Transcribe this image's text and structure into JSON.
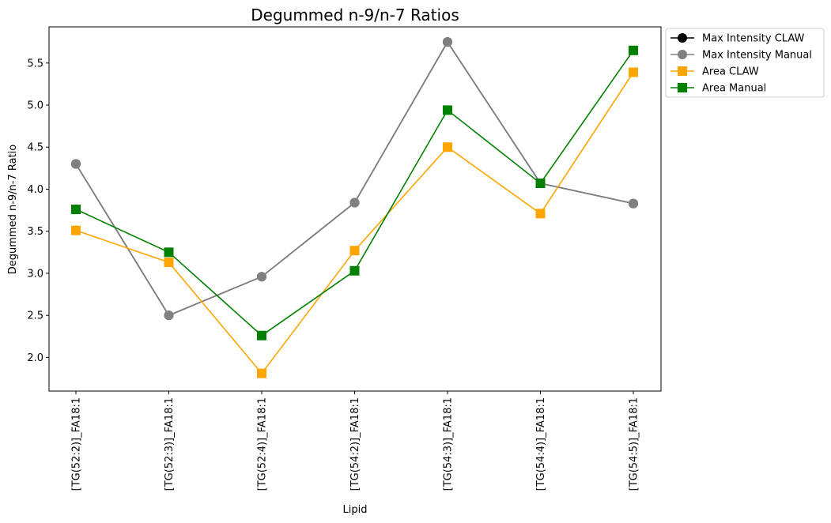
{
  "chart_data": {
    "type": "line",
    "title": "Degummed n-9/n-7 Ratios",
    "xlabel": "Lipid",
    "ylabel": "Degummed n-9/n-7 Ratio",
    "categories": [
      "[TG(52:2)]_FA18:1",
      "[TG(52:3)]_FA18:1",
      "[TG(52:4)]_FA18:1",
      "[TG(54:2)]_FA18:1",
      "[TG(54:3)]_FA18:1",
      "[TG(54:4)]_FA18:1",
      "[TG(54:5)]_FA18:1"
    ],
    "ylim": [
      1.6,
      5.93
    ],
    "yticks": [
      "2.0",
      "2.5",
      "3.0",
      "3.5",
      "4.0",
      "4.5",
      "5.0",
      "5.5"
    ],
    "grid": false,
    "legend_position": "outside-top-right",
    "series": [
      {
        "name": "Max Intensity CLAW",
        "color": "#000000",
        "marker": "circle",
        "values": [
          4.3,
          2.5,
          2.96,
          3.84,
          5.75,
          4.07,
          3.83
        ]
      },
      {
        "name": "Max Intensity Manual",
        "color": "#808080",
        "marker": "circle",
        "values": [
          4.3,
          2.5,
          2.96,
          3.84,
          5.75,
          4.07,
          3.83
        ]
      },
      {
        "name": "Area CLAW",
        "color": "#FFA500",
        "marker": "square",
        "values": [
          3.51,
          3.13,
          1.81,
          3.27,
          4.5,
          3.71,
          5.39
        ]
      },
      {
        "name": "Area Manual",
        "color": "#008000",
        "marker": "square",
        "values": [
          3.76,
          3.25,
          2.26,
          3.03,
          4.94,
          4.07,
          5.65
        ]
      }
    ]
  }
}
